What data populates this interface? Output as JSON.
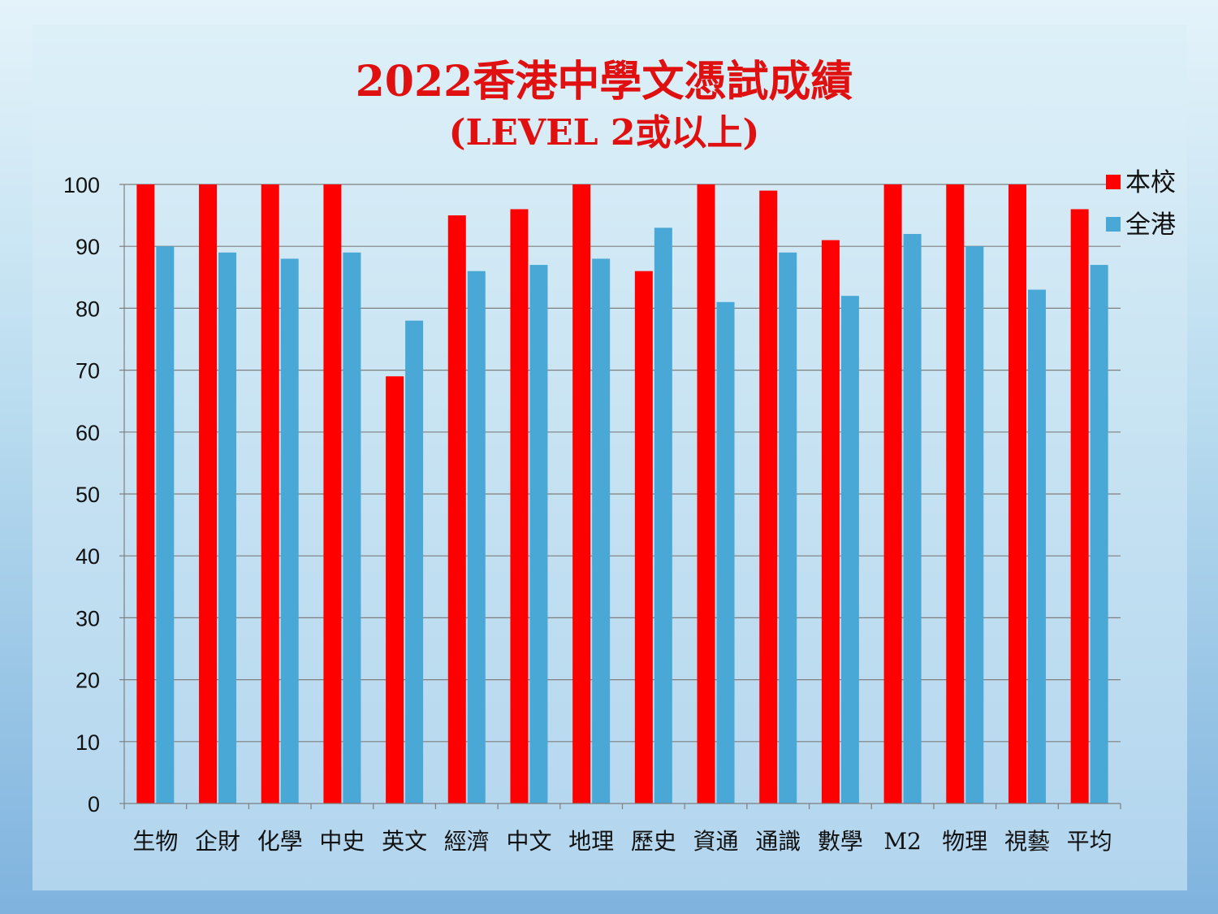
{
  "chart_data": {
    "type": "bar",
    "title": "2022香港中學文憑試成績",
    "subtitle": "(LEVEL 2或以上)",
    "xlabel": "",
    "ylabel": "",
    "ylim": [
      0,
      100
    ],
    "yticks": [
      0,
      10,
      20,
      30,
      40,
      50,
      60,
      70,
      80,
      90,
      100
    ],
    "grid": true,
    "legend_position": "top-right",
    "categories": [
      "生物",
      "企財",
      "化學",
      "中史",
      "英文",
      "經濟",
      "中文",
      "地理",
      "歷史",
      "資通",
      "通識",
      "數學",
      "M2",
      "物理",
      "視藝",
      "平均"
    ],
    "series": [
      {
        "name": "本校",
        "color": "#ff0000",
        "values": [
          100,
          100,
          100,
          100,
          69,
          95,
          96,
          100,
          86,
          100,
          99,
          91,
          100,
          100,
          100,
          96
        ]
      },
      {
        "name": "全港",
        "color": "#4aa8d6",
        "values": [
          90,
          89,
          88,
          89,
          78,
          86,
          87,
          88,
          93,
          81,
          89,
          82,
          92,
          90,
          83,
          87
        ]
      }
    ]
  }
}
